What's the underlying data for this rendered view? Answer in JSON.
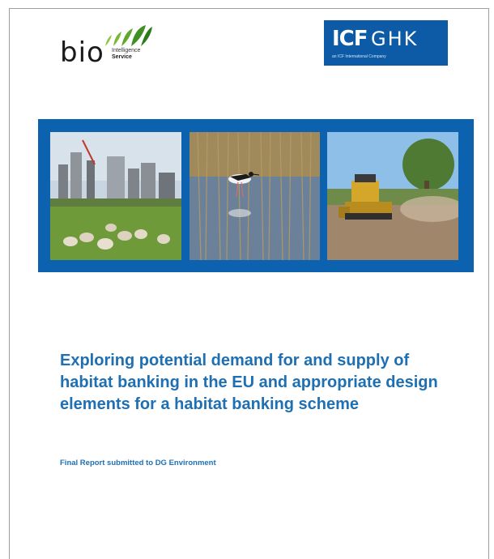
{
  "logos": {
    "bio": {
      "word": "bio",
      "line1": "Intelligence",
      "line2": "Service"
    },
    "icf": {
      "icf": "ICF",
      "ghk": "GHK",
      "tagline": "an ICF International Company"
    }
  },
  "photos": [
    {
      "name": "city-sheep-photo"
    },
    {
      "name": "wading-bird-photo"
    },
    {
      "name": "bulldozer-photo"
    }
  ],
  "colors": {
    "brand_blue": "#0d62b0",
    "title_blue": "#1f6fb3",
    "icf_blue": "#0d5aa7"
  },
  "title": "Exploring potential demand for and supply of habitat banking in the EU and appropriate design elements for a habitat banking scheme",
  "subtitle": "Final Report submitted to DG Environment"
}
